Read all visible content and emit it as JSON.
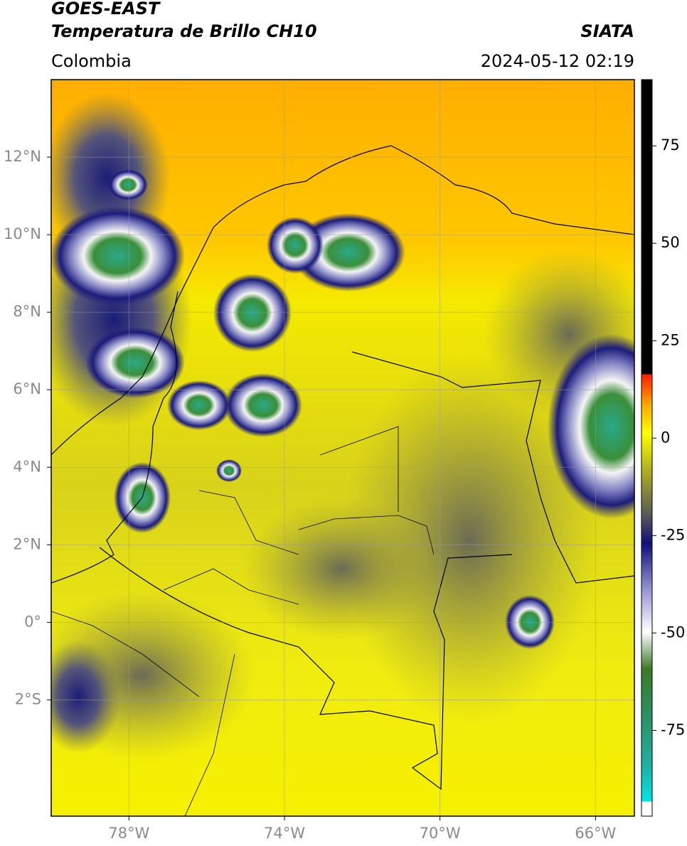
{
  "header": {
    "title": "GOES-EAST",
    "subtitle": "Temperatura de Brillo CH10",
    "region": "Colombia",
    "source": "SIATA",
    "datetime": "2024-05-12 02:19"
  },
  "map": {
    "xlim": [
      -80,
      -65
    ],
    "ylim": [
      -5,
      14
    ],
    "xticks": [
      {
        "value": -78,
        "label": "78°W"
      },
      {
        "value": -74,
        "label": "74°W"
      },
      {
        "value": -70,
        "label": "70°W"
      },
      {
        "value": -66,
        "label": "66°W"
      }
    ],
    "yticks": [
      {
        "value": 12,
        "label": "12°N"
      },
      {
        "value": 10,
        "label": "10°N"
      },
      {
        "value": 8,
        "label": "8°N"
      },
      {
        "value": 6,
        "label": "6°N"
      },
      {
        "value": 4,
        "label": "4°N"
      },
      {
        "value": 2,
        "label": "2°N"
      },
      {
        "value": 0,
        "label": "0°"
      },
      {
        "value": -2,
        "label": "2°S"
      }
    ],
    "grid": true
  },
  "colorbar": {
    "lim": [
      -97,
      92
    ],
    "ticks": [
      75,
      50,
      25,
      0,
      -25,
      -50,
      -75
    ]
  }
}
